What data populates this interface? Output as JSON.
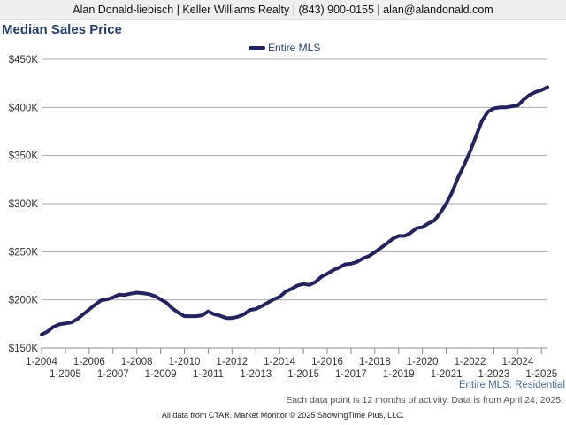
{
  "header": {
    "contact_line": "Alan Donald-liebisch | Keller Williams Realty | (843) 900-0155 | alan@alandonald.com"
  },
  "chart_title": "Median Sales Price",
  "source_label": "Entire MLS: Residential",
  "note": "Each data point is 12 months of activity. Data is from April 24, 2025.",
  "footer": "All data from CTAR. Market Monitor © 2025 ShowingTime Plus, LLC.",
  "colors": {
    "series": "#23235e",
    "title": "#243d6b",
    "grid": "#a8a8a8",
    "banner_bg": "#efefef"
  },
  "chart_data": {
    "type": "line",
    "title": "Median Sales Price",
    "xlabel": "",
    "ylabel": "",
    "x_start": "2004-01",
    "x_end": "2025-04",
    "ylim": [
      150000,
      450000
    ],
    "y_ticks": [
      {
        "value": 450000,
        "label": "$450K"
      },
      {
        "value": 400000,
        "label": "$400K"
      },
      {
        "value": 350000,
        "label": "$350K"
      },
      {
        "value": 300000,
        "label": "$300K"
      },
      {
        "value": 250000,
        "label": "$250K"
      },
      {
        "value": 200000,
        "label": "$200K"
      },
      {
        "value": 150000,
        "label": "$150K"
      }
    ],
    "x_ticks": [
      {
        "date": "2004-01",
        "label": "1-2004"
      },
      {
        "date": "2005-01",
        "label": "1-2005"
      },
      {
        "date": "2006-01",
        "label": "1-2006"
      },
      {
        "date": "2007-01",
        "label": "1-2007"
      },
      {
        "date": "2008-01",
        "label": "1-2008"
      },
      {
        "date": "2009-01",
        "label": "1-2009"
      },
      {
        "date": "2010-01",
        "label": "1-2010"
      },
      {
        "date": "2011-01",
        "label": "1-2011"
      },
      {
        "date": "2012-01",
        "label": "1-2012"
      },
      {
        "date": "2013-01",
        "label": "1-2013"
      },
      {
        "date": "2014-01",
        "label": "1-2014"
      },
      {
        "date": "2015-01",
        "label": "1-2015"
      },
      {
        "date": "2016-01",
        "label": "1-2016"
      },
      {
        "date": "2017-01",
        "label": "1-2017"
      },
      {
        "date": "2018-01",
        "label": "1-2018"
      },
      {
        "date": "2019-01",
        "label": "1-2019"
      },
      {
        "date": "2020-01",
        "label": "1-2020"
      },
      {
        "date": "2021-01",
        "label": "1-2021"
      },
      {
        "date": "2022-01",
        "label": "1-2022"
      },
      {
        "date": "2023-01",
        "label": "1-2023"
      },
      {
        "date": "2024-01",
        "label": "1-2024"
      },
      {
        "date": "2025-01",
        "label": "1-2025"
      }
    ],
    "grid": true,
    "legend": "top-center",
    "series": [
      {
        "name": "Entire MLS",
        "points": [
          [
            "2004-01",
            164000
          ],
          [
            "2004-04",
            167000
          ],
          [
            "2004-07",
            172000
          ],
          [
            "2004-10",
            174500
          ],
          [
            "2005-01",
            175500
          ],
          [
            "2005-04",
            176500
          ],
          [
            "2005-07",
            180000
          ],
          [
            "2005-10",
            185000
          ],
          [
            "2006-01",
            190000
          ],
          [
            "2006-04",
            195000
          ],
          [
            "2006-07",
            199500
          ],
          [
            "2006-10",
            200500
          ],
          [
            "2007-01",
            202500
          ],
          [
            "2007-04",
            205500
          ],
          [
            "2007-07",
            205000
          ],
          [
            "2007-10",
            206500
          ],
          [
            "2008-01",
            207500
          ],
          [
            "2008-04",
            207000
          ],
          [
            "2008-07",
            206000
          ],
          [
            "2008-10",
            204000
          ],
          [
            "2009-01",
            200500
          ],
          [
            "2009-04",
            197000
          ],
          [
            "2009-07",
            191000
          ],
          [
            "2009-10",
            186500
          ],
          [
            "2010-01",
            183000
          ],
          [
            "2010-04",
            183000
          ],
          [
            "2010-07",
            183000
          ],
          [
            "2010-10",
            184000
          ],
          [
            "2011-01",
            188000
          ],
          [
            "2011-04",
            185000
          ],
          [
            "2011-07",
            183500
          ],
          [
            "2011-10",
            181000
          ],
          [
            "2012-01",
            181000
          ],
          [
            "2012-04",
            182500
          ],
          [
            "2012-07",
            185000
          ],
          [
            "2012-10",
            189500
          ],
          [
            "2013-01",
            190500
          ],
          [
            "2013-04",
            193500
          ],
          [
            "2013-07",
            197000
          ],
          [
            "2013-10",
            200500
          ],
          [
            "2014-01",
            203000
          ],
          [
            "2014-04",
            208500
          ],
          [
            "2014-07",
            211500
          ],
          [
            "2014-10",
            215000
          ],
          [
            "2015-01",
            216500
          ],
          [
            "2015-04",
            215500
          ],
          [
            "2015-07",
            218500
          ],
          [
            "2015-10",
            224000
          ],
          [
            "2016-01",
            227000
          ],
          [
            "2016-04",
            231000
          ],
          [
            "2016-07",
            233500
          ],
          [
            "2016-10",
            237000
          ],
          [
            "2017-01",
            237500
          ],
          [
            "2017-04",
            239500
          ],
          [
            "2017-07",
            243000
          ],
          [
            "2017-10",
            245500
          ],
          [
            "2018-01",
            249500
          ],
          [
            "2018-04",
            254000
          ],
          [
            "2018-07",
            258500
          ],
          [
            "2018-10",
            263500
          ],
          [
            "2019-01",
            266500
          ],
          [
            "2019-04",
            266500
          ],
          [
            "2019-07",
            269500
          ],
          [
            "2019-10",
            274500
          ],
          [
            "2020-01",
            275500
          ],
          [
            "2020-04",
            279500
          ],
          [
            "2020-07",
            282500
          ],
          [
            "2020-10",
            290500
          ],
          [
            "2021-01",
            300000
          ],
          [
            "2021-04",
            312000
          ],
          [
            "2021-07",
            327500
          ],
          [
            "2021-10",
            340000
          ],
          [
            "2022-01",
            354000
          ],
          [
            "2022-04",
            370000
          ],
          [
            "2022-07",
            386000
          ],
          [
            "2022-10",
            395500
          ],
          [
            "2023-01",
            399000
          ],
          [
            "2023-04",
            400000
          ],
          [
            "2023-07",
            400000
          ],
          [
            "2023-10",
            401000
          ],
          [
            "2024-01",
            402000
          ],
          [
            "2024-04",
            408000
          ],
          [
            "2024-07",
            413000
          ],
          [
            "2024-10",
            416000
          ],
          [
            "2025-01",
            418000
          ],
          [
            "2025-04",
            421000
          ]
        ]
      }
    ]
  }
}
